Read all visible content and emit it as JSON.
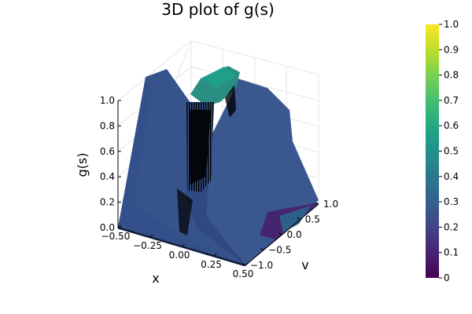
{
  "chart_data": {
    "type": "surface3d",
    "title": "3D plot of g(s)",
    "xlabel": "x",
    "ylabel": "v",
    "zlabel": "g(s)",
    "xlim": [
      -0.5,
      0.5
    ],
    "ylim": [
      -1.0,
      1.0
    ],
    "zlim": [
      0.0,
      1.0
    ],
    "x_ticks": [
      "−0.50",
      "−0.25",
      "0.00",
      "0.25",
      "0.50"
    ],
    "y_ticks": [
      "−1.0",
      "−0.5",
      "0.0",
      "0.5",
      "1.0"
    ],
    "z_ticks": [
      "0.0",
      "0.2",
      "0.4",
      "0.6",
      "0.8",
      "1.0"
    ],
    "colorbar": {
      "colormap": "viridis",
      "range": [
        0,
        1
      ],
      "ticks": [
        "0",
        "0.1",
        "0.2",
        "0.3",
        "0.4",
        "0.5",
        "0.6",
        "0.7",
        "0.8",
        "0.9",
        "1.0"
      ]
    },
    "colors": {
      "surface_main": "#37538b",
      "surface_dark": "#2a3f73",
      "surface_low": "#45256f",
      "ridge_green": "#2a8f82",
      "black_region": "#000000"
    }
  }
}
